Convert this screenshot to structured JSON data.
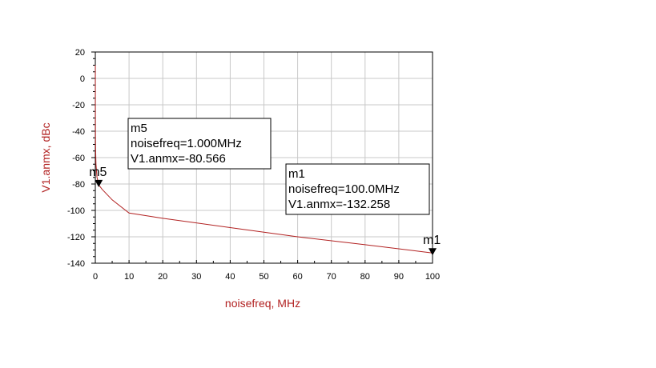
{
  "chart_data": {
    "type": "line",
    "xlabel": "noisefreq, MHz",
    "ylabel": "V1.anmx, dBc",
    "xlim": [
      0,
      100
    ],
    "ylim": [
      -140,
      20
    ],
    "x_ticks": [
      "0",
      "10",
      "20",
      "30",
      "40",
      "50",
      "60",
      "70",
      "80",
      "90",
      "100"
    ],
    "y_ticks": [
      "20",
      "0",
      "-20",
      "-40",
      "-60",
      "-80",
      "-100",
      "-120",
      "-140"
    ],
    "grid": true,
    "series_color": "#b22222",
    "series": [
      {
        "x": [
          0.01,
          0.02,
          0.05,
          0.1,
          0.2,
          0.5,
          1.0,
          2.0,
          5.0,
          10.0,
          20.0,
          40.0,
          60.0,
          80.0,
          100.0
        ],
        "y": [
          10,
          -20,
          -45,
          -55,
          -65,
          -75,
          -80.566,
          -84,
          -92,
          -102,
          -106,
          -113,
          -120,
          -126,
          -132.258
        ]
      }
    ],
    "markers": [
      {
        "name": "m5",
        "x": 1.0,
        "y": -80.566,
        "lines": [
          "m5",
          "noisefreq=1.000MHz",
          "V1.anmx=-80.566"
        ]
      },
      {
        "name": "m1",
        "x": 100.0,
        "y": -132.258,
        "lines": [
          "m1",
          "noisefreq=100.0MHz",
          "V1.anmx=-132.258"
        ]
      }
    ]
  }
}
